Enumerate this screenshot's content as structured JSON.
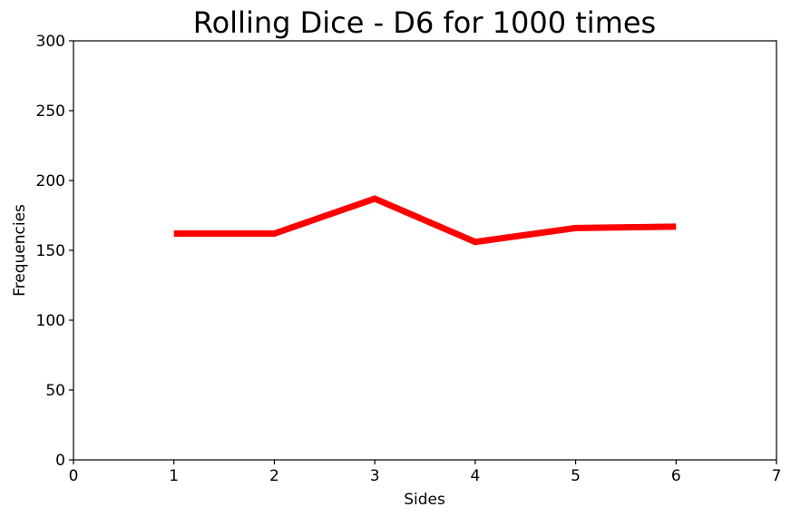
{
  "chart_data": {
    "type": "line",
    "title": "Rolling Dice - D6 for 1000 times",
    "xlabel": "Sides",
    "ylabel": "Frequencies",
    "xlim": [
      0,
      7
    ],
    "ylim": [
      0,
      300
    ],
    "xticks": [
      "0",
      "1",
      "2",
      "3",
      "4",
      "5",
      "6",
      "7"
    ],
    "yticks": [
      "0",
      "50",
      "100",
      "150",
      "200",
      "250",
      "300"
    ],
    "grid": false,
    "line_color": "#ff0000",
    "series": [
      {
        "x": [
          1,
          2,
          3,
          4,
          5,
          6
        ],
        "y": [
          162,
          162,
          187,
          156,
          166,
          167
        ]
      }
    ]
  }
}
